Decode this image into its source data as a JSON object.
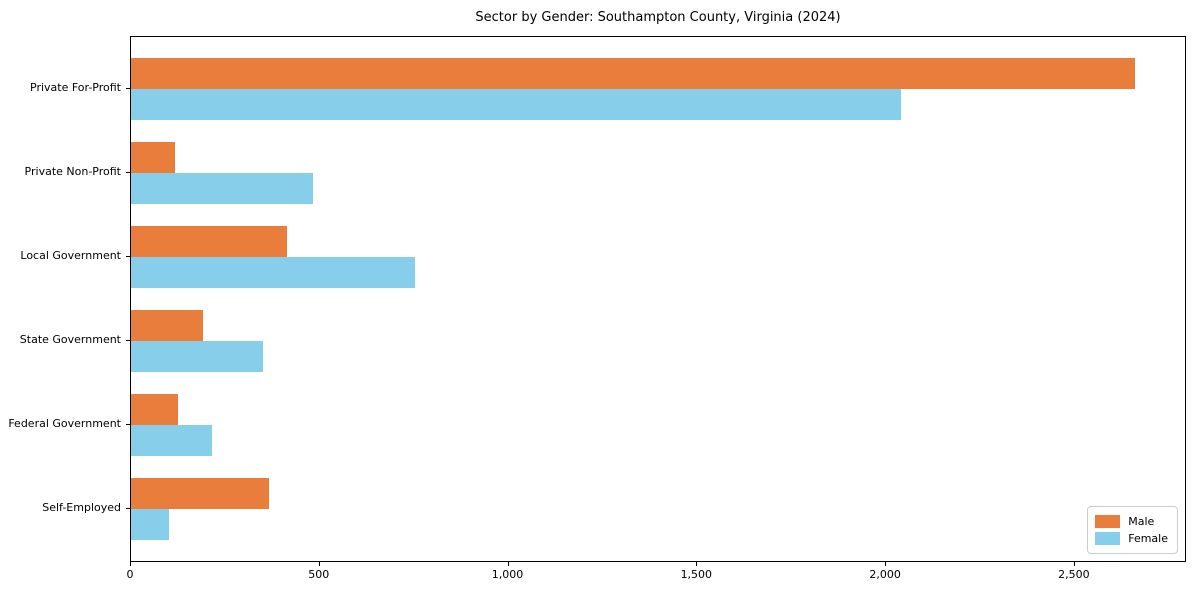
{
  "title": "Sector by Gender: Southampton County, Virginia (2024)",
  "colors": {
    "male": "#E87D3C",
    "female": "#87CEEB",
    "axis": "#000000",
    "legend_border": "#CCCCCC",
    "background": "#FFFFFF"
  },
  "chart_data": {
    "type": "bar",
    "orientation": "horizontal",
    "title": "Sector by Gender: Southampton County, Virginia (2024)",
    "xlabel": "",
    "ylabel": "",
    "categories": [
      "Private For-Profit",
      "Private Non-Profit",
      "Local Government",
      "State Government",
      "Federal Government",
      "Self-Employed"
    ],
    "series": [
      {
        "name": "Male",
        "color": "#E87D3C",
        "values": [
          2664,
          117,
          413,
          190,
          126,
          366
        ]
      },
      {
        "name": "Female",
        "color": "#87CEEB",
        "values": [
          2043,
          483,
          753,
          351,
          216,
          100
        ]
      }
    ],
    "xlim": [
      0,
      2797
    ],
    "xticks": [
      0,
      500,
      1000,
      1500,
      2000,
      2500
    ],
    "xtick_labels": [
      "0",
      "500",
      "1,000",
      "1,500",
      "2,000",
      "2,500"
    ],
    "grid": false,
    "legend_position": "lower right"
  },
  "legend": {
    "items": [
      {
        "label": "Male"
      },
      {
        "label": "Female"
      }
    ]
  }
}
